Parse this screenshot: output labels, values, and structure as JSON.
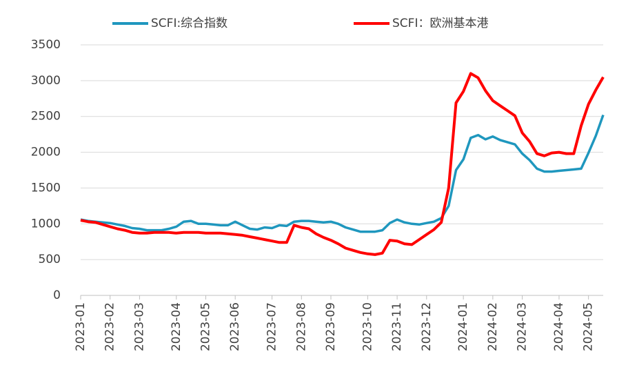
{
  "chart_data": {
    "type": "line",
    "categories": [
      "2023-01",
      null,
      null,
      null,
      "2023-02",
      null,
      null,
      null,
      "2023-03",
      null,
      null,
      null,
      null,
      "2023-04",
      null,
      null,
      null,
      "2023-05",
      null,
      null,
      null,
      "2023-06",
      null,
      null,
      null,
      null,
      "2023-07",
      null,
      null,
      null,
      "2023-08",
      null,
      null,
      null,
      "2023-09",
      null,
      null,
      null,
      null,
      "2023-10",
      null,
      null,
      null,
      "2023-11",
      null,
      null,
      null,
      "2023-12",
      null,
      null,
      null,
      null,
      "2024-01",
      null,
      null,
      null,
      "2024-02",
      null,
      null,
      null,
      "2024-03",
      null,
      null,
      null,
      null,
      "2024-04",
      null,
      null,
      null,
      "2024-05",
      null,
      null
    ],
    "series": [
      {
        "name": "SCFI:综合指数",
        "color": "#1f97be",
        "values": [
          1060,
          1040,
          1030,
          1020,
          1010,
          990,
          970,
          940,
          930,
          910,
          910,
          910,
          930,
          960,
          1030,
          1040,
          1000,
          1000,
          990,
          980,
          980,
          1030,
          980,
          930,
          920,
          950,
          940,
          980,
          970,
          1030,
          1040,
          1040,
          1030,
          1020,
          1030,
          1000,
          950,
          920,
          890,
          890,
          890,
          910,
          1010,
          1060,
          1020,
          1000,
          990,
          1010,
          1030,
          1080,
          1250,
          1750,
          1900,
          2200,
          2240,
          2180,
          2220,
          2170,
          2140,
          2110,
          1980,
          1890,
          1770,
          1730,
          1730,
          1740,
          1750,
          1760,
          1770,
          1990,
          2230,
          2520
        ]
      },
      {
        "name": "SCFI：欧洲基本港",
        "color": "#ff0000",
        "values": [
          1050,
          1030,
          1020,
          990,
          960,
          930,
          910,
          880,
          870,
          870,
          880,
          880,
          880,
          870,
          880,
          880,
          880,
          870,
          870,
          870,
          860,
          850,
          840,
          820,
          800,
          780,
          760,
          740,
          740,
          980,
          950,
          930,
          860,
          810,
          770,
          720,
          660,
          630,
          600,
          580,
          570,
          590,
          770,
          760,
          720,
          710,
          780,
          850,
          920,
          1020,
          1500,
          2690,
          2850,
          3100,
          3040,
          2860,
          2720,
          2650,
          2580,
          2510,
          2270,
          2150,
          1980,
          1950,
          1990,
          2000,
          1980,
          1980,
          2370,
          2670,
          2870,
          3050
        ]
      }
    ],
    "ylim": [
      0,
      3500
    ],
    "yticks": [
      0,
      500,
      1000,
      1500,
      2000,
      2500,
      3000,
      3500
    ],
    "grid": true
  }
}
